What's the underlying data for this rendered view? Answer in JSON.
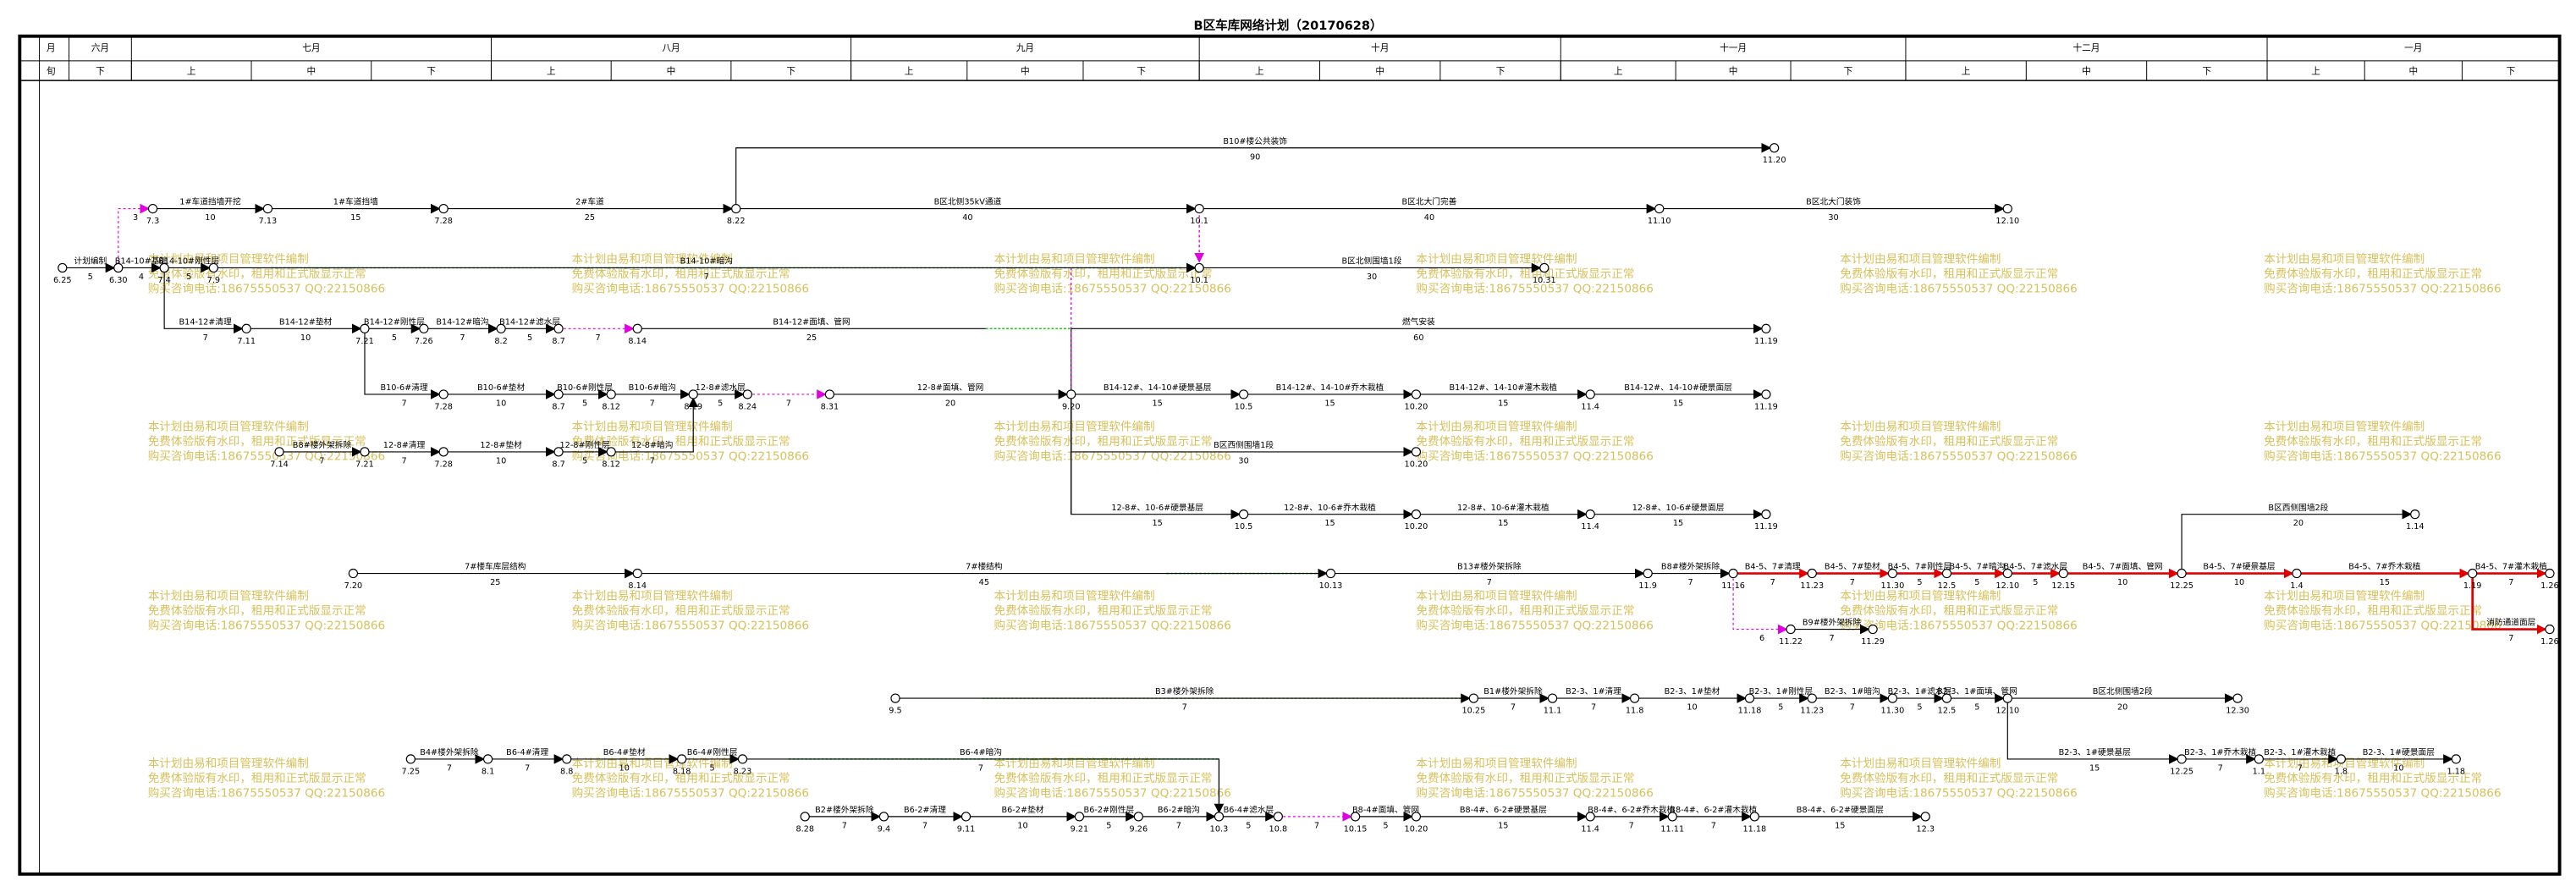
{
  "title": "B区车库网络计划（20170628）",
  "header": {
    "month_label": "月",
    "period_label": "旬",
    "months": [
      "六月",
      "七月",
      "八月",
      "九月",
      "十月",
      "十一月",
      "十二月",
      "一月"
    ],
    "periods": [
      "下",
      "上",
      "中",
      "下",
      "上",
      "中",
      "下",
      "上",
      "中",
      "下",
      "上",
      "中",
      "下",
      "上",
      "中",
      "下",
      "上",
      "中",
      "下",
      "上",
      "中",
      "下"
    ]
  },
  "watermark": [
    "本计划由易和项目管理软件编制",
    "免费体验版有水印，租用和正式版显示正常",
    "购买咨询电话:18675550537 QQ:22150866"
  ],
  "nodes": [
    "6.25",
    "6.30",
    "7.3",
    "7.13",
    "7.28",
    "8.22",
    "10.1",
    "11.10",
    "12.10",
    "11.20",
    "7.4",
    "7.9",
    "10.1",
    "10.31",
    "7.11",
    "7.21",
    "7.26",
    "8.2",
    "8.7",
    "8.14",
    "11.19",
    "7.28",
    "8.7",
    "8.12",
    "8.19",
    "8.24",
    "8.31",
    "9.20",
    "10.5",
    "10.20",
    "11.4",
    "11.19",
    "7.14",
    "7.21",
    "7.28",
    "8.7",
    "8.12",
    "10.20",
    "10.5",
    "10.20",
    "11.4",
    "11.19",
    "7.20",
    "8.14",
    "10.13",
    "11.9",
    "11.16",
    "11.23",
    "11.30",
    "12.5",
    "12.10",
    "12.15",
    "12.25",
    "1.4",
    "1.19",
    "1.26",
    "1.14",
    "1.26",
    "11.22",
    "11.29",
    "9.5",
    "10.25",
    "11.1",
    "11.8",
    "11.18",
    "11.23",
    "11.30",
    "12.5",
    "12.10",
    "12.30",
    "12.25",
    "1.1",
    "1.8",
    "1.18",
    "7.25",
    "8.1",
    "8.8",
    "8.18",
    "8.23",
    "8.28",
    "9.4",
    "9.11",
    "9.21",
    "9.26",
    "10.3",
    "10.8",
    "10.15",
    "10.20",
    "11.4",
    "11.11",
    "11.18",
    "12.3"
  ],
  "activities": [
    {
      "name": "计划编制",
      "duration": 5
    },
    {
      "duration": 3
    },
    {
      "name": "1#车道挡墙开挖",
      "duration": 10
    },
    {
      "name": "1#车道挡墙",
      "duration": 15
    },
    {
      "name": "2#车道",
      "duration": 25
    },
    {
      "name": "B区北侧35kV通道",
      "duration": 40
    },
    {
      "name": "B区北大门完善",
      "duration": 40
    },
    {
      "name": "B区北大门装饰",
      "duration": 30
    },
    {
      "name": "B10#楼公共装饰",
      "duration": 90
    },
    {
      "name": "B14-10#基础",
      "duration": 4
    },
    {
      "name": "B14-10#刚性层",
      "duration": 5
    },
    {
      "name": "B14-10#暗沟",
      "duration": 7
    },
    {
      "name": "B区北侧围墙1段",
      "duration": 30
    },
    {
      "name": "B14-12#清理",
      "duration": 7
    },
    {
      "name": "B14-12#垫材",
      "duration": 10
    },
    {
      "name": "B14-12#刚性层",
      "duration": 5
    },
    {
      "name": "B14-12#暗沟",
      "duration": 7
    },
    {
      "name": "B14-12#滤水层",
      "duration": 5
    },
    {
      "duration": 7
    },
    {
      "name": "B14-12#面填、管网",
      "duration": 25
    },
    {
      "name": "燃气安装",
      "duration": 60
    },
    {
      "name": "B10-6#清理",
      "duration": 7
    },
    {
      "name": "B10-6#垫材",
      "duration": 10
    },
    {
      "name": "B10-6#刚性层",
      "duration": 5
    },
    {
      "name": "B10-6#暗沟",
      "duration": 7
    },
    {
      "name": "12-8#滤水层",
      "duration": 5
    },
    {
      "duration": 7
    },
    {
      "name": "12-8#面填、管网",
      "duration": 20
    },
    {
      "name": "B14-12#、14-10#硬景基层",
      "duration": 15
    },
    {
      "name": "B14-12#、14-10#乔木栽植",
      "duration": 15
    },
    {
      "name": "B14-12#、14-10#灌木栽植",
      "duration": 15
    },
    {
      "name": "B14-12#、14-10#硬景面层",
      "duration": 15
    },
    {
      "name": "B8#楼外架拆除",
      "duration": 7
    },
    {
      "name": "12-8#清理",
      "duration": 7
    },
    {
      "name": "12-8#垫材",
      "duration": 10
    },
    {
      "name": "12-8#刚性层",
      "duration": 5
    },
    {
      "name": "12-8#暗沟",
      "duration": 7
    },
    {
      "name": "B区西侧围墙1段",
      "duration": 30
    },
    {
      "name": "12-8#、10-6#硬景基层",
      "duration": 15
    },
    {
      "name": "12-8#、10-6#乔木栽植",
      "duration": 15
    },
    {
      "name": "12-8#、10-6#灌木栽植",
      "duration": 15
    },
    {
      "name": "12-8#、10-6#硬景面层",
      "duration": 15
    },
    {
      "name": "7#楼车库层结构",
      "duration": 25
    },
    {
      "name": "7#楼结构",
      "duration": 45
    },
    {
      "name": "B13#楼外架拆除",
      "duration": 7
    },
    {
      "name": "B8#楼外架拆除",
      "duration": 7
    },
    {
      "name": "B4-5、7#清理",
      "duration": 7
    },
    {
      "name": "B4-5、7#垫材",
      "duration": 7
    },
    {
      "name": "B4-5、7#刚性层",
      "duration": 5
    },
    {
      "name": "B4-5、7#暗沟",
      "duration": 5
    },
    {
      "name": "B4-5、7#滤水层",
      "duration": 5
    },
    {
      "name": "B4-5、7#面填、管网",
      "duration": 10
    },
    {
      "name": "B4-5、7#硬景基层",
      "duration": 10
    },
    {
      "name": "B4-5、7#乔木栽植",
      "duration": 15
    },
    {
      "name": "B4-5、7#灌木栽植",
      "duration": 7
    },
    {
      "name": "B区西侧围墙2段",
      "duration": 20
    },
    {
      "name": "消防通道面层",
      "duration": 7
    },
    {
      "duration": 6
    },
    {
      "name": "B9#楼外架拆除",
      "duration": 7
    },
    {
      "name": "B3#楼外架拆除",
      "duration": 7
    },
    {
      "name": "B1#楼外架拆除",
      "duration": 7
    },
    {
      "name": "B2-3、1#清理",
      "duration": 7
    },
    {
      "name": "B2-3、1#垫材",
      "duration": 10
    },
    {
      "name": "B2-3、1#刚性层",
      "duration": 5
    },
    {
      "name": "B2-3、1#暗沟",
      "duration": 7
    },
    {
      "name": "B2-3、1#滤水层",
      "duration": 5
    },
    {
      "name": "B2-3、1#面填、管网",
      "duration": 5
    },
    {
      "name": "B区北侧围墙2段",
      "duration": 20
    },
    {
      "name": "B2-3、1#硬景基层",
      "duration": 15
    },
    {
      "name": "B2-3、1#乔木栽植",
      "duration": 7
    },
    {
      "name": "B2-3、1#灌木栽植",
      "duration": 7
    },
    {
      "name": "B2-3、1#硬景面层",
      "duration": 10
    },
    {
      "name": "B4#楼外架拆除",
      "duration": 7
    },
    {
      "name": "B6-4#清理",
      "duration": 7
    },
    {
      "name": "B6-4#垫材",
      "duration": 10
    },
    {
      "name": "B6-4#刚性层",
      "duration": 5
    },
    {
      "name": "B6-4#暗沟",
      "duration": 7
    },
    {
      "name": "B2#楼外架拆除",
      "duration": 7
    },
    {
      "name": "B6-2#清理",
      "duration": 7
    },
    {
      "name": "B6-2#垫材",
      "duration": 10
    },
    {
      "name": "B6-2#刚性层",
      "duration": 5
    },
    {
      "name": "B6-2#暗沟",
      "duration": 7
    },
    {
      "name": "B6-4#滤水层",
      "duration": 5
    },
    {
      "duration": 7
    },
    {
      "name": "B8-4#面填、管网",
      "duration": 5
    },
    {
      "name": "B8-4#、6-2#硬景基层",
      "duration": 15
    },
    {
      "name": "B8-4#、6-2#乔木栽植",
      "duration": 7
    },
    {
      "name": "B8-4#、6-2#灌木栽植",
      "duration": 7
    },
    {
      "name": "B8-4#、6-2#硬景面层",
      "duration": 15
    }
  ]
}
